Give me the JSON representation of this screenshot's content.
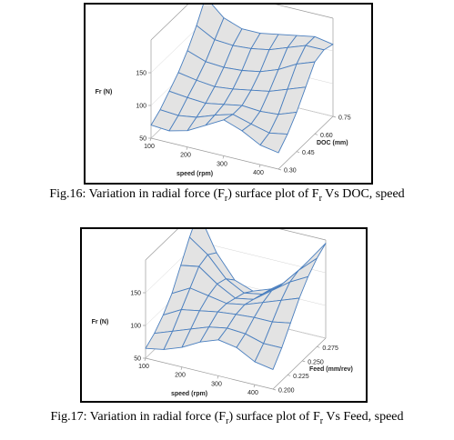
{
  "chart_data": [
    {
      "type": "surface",
      "figure": "Fig.16",
      "zlabel": "Fr (N)",
      "xlabel": "speed (rpm)",
      "ylabel": "DOC (mm)",
      "x_ticks": [
        "100",
        "200",
        "300",
        "400"
      ],
      "y_ticks": [
        "0.30",
        "0.45",
        "0.60",
        "0.75"
      ],
      "z_ticks": [
        "50",
        "100",
        "150"
      ],
      "x_range": [
        100,
        450
      ],
      "y_range": [
        0.3,
        0.75
      ],
      "z_range": [
        50,
        200
      ],
      "grid_x": [
        100,
        150,
        200,
        250,
        300,
        350,
        400,
        450
      ],
      "grid_y": [
        0.3,
        0.375,
        0.45,
        0.525,
        0.6,
        0.675,
        0.75
      ],
      "z": [
        [
          70,
          68,
          75,
          90,
          105,
          95,
          80,
          75
        ],
        [
          80,
          78,
          82,
          92,
          100,
          92,
          85,
          90
        ],
        [
          95,
          92,
          90,
          95,
          100,
          98,
          100,
          110
        ],
        [
          110,
          105,
          102,
          105,
          110,
          115,
          125,
          135
        ],
        [
          130,
          120,
          118,
          120,
          125,
          135,
          150,
          160
        ],
        [
          155,
          140,
          138,
          140,
          145,
          155,
          165,
          165
        ],
        [
          185,
          160,
          150,
          150,
          155,
          160,
          165,
          160
        ]
      ]
    },
    {
      "type": "surface",
      "figure": "Fig.17",
      "zlabel": "Fr (N)",
      "xlabel": "speed (rpm)",
      "ylabel": "Feed (mm/rev)",
      "x_ticks": [
        "100",
        "200",
        "300",
        "400"
      ],
      "y_ticks": [
        "0.200",
        "0.225",
        "0.250",
        "0.275"
      ],
      "z_ticks": [
        "50",
        "100",
        "150"
      ],
      "x_range": [
        100,
        450
      ],
      "y_range": [
        0.2,
        0.29
      ],
      "z_range": [
        50,
        200
      ],
      "grid_x": [
        100,
        150,
        200,
        250,
        300,
        350,
        400,
        450
      ],
      "grid_y": [
        0.2,
        0.215,
        0.23,
        0.245,
        0.26,
        0.275,
        0.29
      ],
      "z": [
        [
          65,
          70,
          80,
          95,
          105,
          100,
          85,
          80
        ],
        [
          75,
          85,
          95,
          105,
          110,
          108,
          100,
          100
        ],
        [
          90,
          105,
          110,
          115,
          118,
          120,
          120,
          125
        ],
        [
          110,
          125,
          120,
          115,
          120,
          130,
          140,
          150
        ],
        [
          140,
          145,
          125,
          110,
          115,
          135,
          155,
          170
        ],
        [
          170,
          150,
          120,
          105,
          110,
          130,
          160,
          185
        ],
        [
          195,
          140,
          105,
          95,
          105,
          125,
          160,
          195
        ]
      ]
    }
  ],
  "captions": {
    "fig16": "Fig.16: Variation in radial force (Fr) surface plot of Fr Vs DOC, speed",
    "fig17": "Fig.17: Variation in radial force (Fr) surface plot of Fr Vs Feed, speed"
  },
  "colors": {
    "surface_fill": "#e3e3e3",
    "mesh_line": "#4a7fbf",
    "box_line": "#9a9a9a"
  }
}
